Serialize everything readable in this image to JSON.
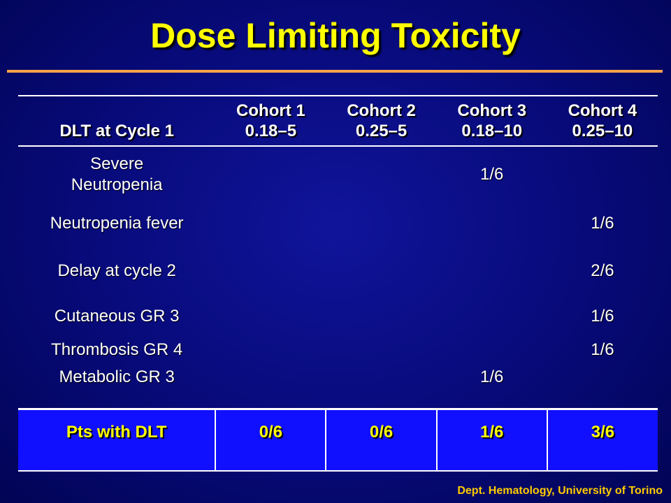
{
  "title": "Dose Limiting Toxicity",
  "table": {
    "headers": [
      {
        "line1": "",
        "line2": "DLT at Cycle 1"
      },
      {
        "line1": "Cohort 1",
        "line2": "0.18–5"
      },
      {
        "line1": "Cohort 2",
        "line2": "0.25–5"
      },
      {
        "line1": "Cohort 3",
        "line2": "0.18–10"
      },
      {
        "line1": "Cohort 4",
        "line2": "0.25–10"
      }
    ],
    "rows": [
      {
        "label_line1": "Severe",
        "label_line2": "Neutropenia",
        "cells": [
          "",
          "",
          "1/6",
          ""
        ]
      },
      {
        "label_line1": "Neutropenia fever",
        "label_line2": "",
        "cells": [
          "",
          "",
          "",
          "1/6"
        ]
      },
      {
        "label_line1": "Delay at cycle 2",
        "label_line2": "",
        "cells": [
          "",
          "",
          "",
          "2/6"
        ]
      },
      {
        "label_line1": "Cutaneous GR 3",
        "label_line2": "",
        "cells": [
          "",
          "",
          "",
          "1/6"
        ]
      },
      {
        "label_line1": "Thrombosis GR 4",
        "label_line2": "",
        "cells": [
          "",
          "",
          "",
          "1/6"
        ]
      },
      {
        "label_line1": "Metabolic GR 3",
        "label_line2": "",
        "cells": [
          "",
          "",
          "1/6",
          ""
        ]
      }
    ],
    "summary": {
      "label": "Pts with DLT",
      "cells": [
        "0/6",
        "0/6",
        "1/6",
        "3/6"
      ]
    }
  },
  "footer": "Dept. Hematology, University of Torino",
  "colors": {
    "background": "#070a78",
    "title": "#ffff00",
    "rule": "#f7a34a",
    "summary_band": "#1010ff",
    "summary_text": "#ffff00",
    "footer": "#ffcc00"
  }
}
